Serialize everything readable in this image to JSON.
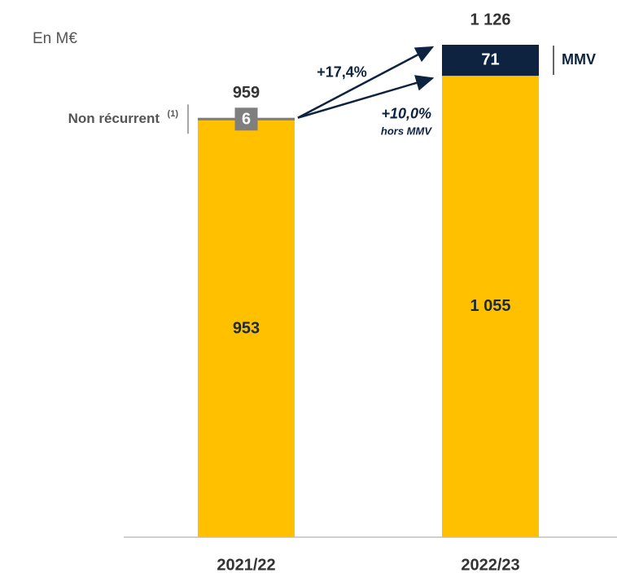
{
  "chart_data": {
    "type": "stacked_bar",
    "unit_label": "En M€",
    "categories": [
      "2021/22",
      "2022/23"
    ],
    "series": [
      {
        "color": "#ffc000",
        "values": [
          953,
          1055
        ],
        "value_labels": [
          "953",
          "1 055"
        ]
      },
      {
        "name": "Non récurrent",
        "name_note": "(1)",
        "color": "#7f7f7f",
        "values": [
          6,
          null
        ]
      },
      {
        "name": "MMV",
        "color": "#0d2340",
        "values": [
          null,
          71
        ]
      }
    ],
    "totals": [
      959,
      1126
    ],
    "total_labels": [
      "959",
      "1 126"
    ],
    "annotations": {
      "growth": "+17,4%",
      "growth_excl": "+10,0%",
      "growth_excl_note": "hors MMV"
    }
  }
}
